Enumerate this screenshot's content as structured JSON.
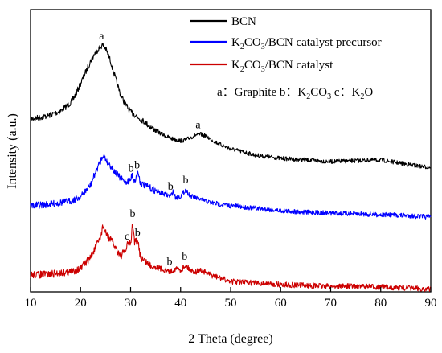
{
  "chart_data": {
    "type": "line",
    "title": "",
    "xlabel": "2 Theta (degree)",
    "ylabel": "Intensity (a.u.)",
    "xlim": [
      10,
      90
    ],
    "xticks": [
      10,
      20,
      30,
      40,
      50,
      60,
      70,
      80,
      90
    ],
    "yticks_shown": false,
    "grid": false,
    "legend": {
      "placement": "top-right"
    },
    "series": [
      {
        "name": "BCN",
        "color": "#000000",
        "points": [
          [
            10,
            148
          ],
          [
            12,
            146
          ],
          [
            14,
            143
          ],
          [
            16,
            138
          ],
          [
            18,
            128
          ],
          [
            19,
            118
          ],
          [
            20,
            104
          ],
          [
            21,
            90
          ],
          [
            22,
            76
          ],
          [
            23,
            65
          ],
          [
            24,
            58
          ],
          [
            24.5,
            56
          ],
          [
            25,
            60
          ],
          [
            26,
            76
          ],
          [
            27,
            98
          ],
          [
            28,
            118
          ],
          [
            29,
            130
          ],
          [
            30,
            139
          ],
          [
            32,
            148
          ],
          [
            34,
            158
          ],
          [
            36,
            166
          ],
          [
            38,
            172
          ],
          [
            40,
            175
          ],
          [
            41,
            174
          ],
          [
            42,
            171
          ],
          [
            43,
            168
          ],
          [
            44,
            167
          ],
          [
            45,
            169
          ],
          [
            46,
            173
          ],
          [
            48,
            180
          ],
          [
            50,
            185
          ],
          [
            55,
            193
          ],
          [
            60,
            197
          ],
          [
            65,
            199
          ],
          [
            70,
            201
          ],
          [
            75,
            200
          ],
          [
            78,
            199
          ],
          [
            80,
            199
          ],
          [
            83,
            202
          ],
          [
            86,
            205
          ],
          [
            88,
            207
          ],
          [
            90,
            208
          ]
        ]
      },
      {
        "name": "K2CO3/BCN catalyst precursor",
        "color": "#0000ff",
        "points": [
          [
            10,
            256
          ],
          [
            14,
            254
          ],
          [
            18,
            250
          ],
          [
            20,
            245
          ],
          [
            22,
            230
          ],
          [
            23,
            214
          ],
          [
            24,
            200
          ],
          [
            24.5,
            192
          ],
          [
            25,
            198
          ],
          [
            26,
            206
          ],
          [
            27,
            215
          ],
          [
            28,
            222
          ],
          [
            29,
            226
          ],
          [
            30,
            224
          ],
          [
            30.3,
            216
          ],
          [
            30.8,
            226
          ],
          [
            31.5,
            214
          ],
          [
            32,
            228
          ],
          [
            34,
            234
          ],
          [
            36,
            240
          ],
          [
            38,
            244
          ],
          [
            38.5,
            238
          ],
          [
            39,
            246
          ],
          [
            40,
            244
          ],
          [
            41,
            236
          ],
          [
            42,
            244
          ],
          [
            44,
            248
          ],
          [
            46,
            252
          ],
          [
            48,
            254
          ],
          [
            50,
            256
          ],
          [
            52,
            257
          ],
          [
            55,
            259
          ],
          [
            60,
            262
          ],
          [
            65,
            264
          ],
          [
            70,
            265
          ],
          [
            75,
            266
          ],
          [
            80,
            267
          ],
          [
            85,
            268
          ],
          [
            90,
            270
          ]
        ]
      },
      {
        "name": "K2CO3/BCN catalyst",
        "color": "#cc0000",
        "points": [
          [
            10,
            342
          ],
          [
            14,
            341
          ],
          [
            18,
            338
          ],
          [
            20,
            334
          ],
          [
            22,
            320
          ],
          [
            23,
            308
          ],
          [
            24,
            295
          ],
          [
            24.5,
            280
          ],
          [
            25,
            290
          ],
          [
            26,
            298
          ],
          [
            27,
            308
          ],
          [
            28,
            318
          ],
          [
            29,
            312
          ],
          [
            29.5,
            302
          ],
          [
            30,
            304
          ],
          [
            30.4,
            278
          ],
          [
            30.8,
            300
          ],
          [
            31.5,
            302
          ],
          [
            32,
            320
          ],
          [
            34,
            330
          ],
          [
            36,
            334
          ],
          [
            38,
            338
          ],
          [
            39,
            334
          ],
          [
            40,
            336
          ],
          [
            41,
            330
          ],
          [
            42,
            336
          ],
          [
            43,
            338
          ],
          [
            44,
            336
          ],
          [
            46,
            342
          ],
          [
            48,
            346
          ],
          [
            50,
            350
          ],
          [
            55,
            352
          ],
          [
            60,
            354
          ],
          [
            65,
            355
          ],
          [
            70,
            356
          ],
          [
            75,
            356
          ],
          [
            80,
            357
          ],
          [
            85,
            358
          ],
          [
            90,
            360
          ]
        ]
      }
    ],
    "peak_annotations": [
      {
        "label": "a",
        "x": 24.2,
        "series": 0
      },
      {
        "label": "a",
        "x": 43.5,
        "series": 0
      },
      {
        "label": "b",
        "x": 30.1,
        "series": 1
      },
      {
        "label": "b",
        "x": 31.3,
        "series": 1
      },
      {
        "label": "b",
        "x": 38.0,
        "series": 1
      },
      {
        "label": "b",
        "x": 41.0,
        "series": 1
      },
      {
        "label": "b",
        "x": 30.4,
        "series": 2
      },
      {
        "label": "c",
        "x": 29.3,
        "series": 2
      },
      {
        "label": "b",
        "x": 31.4,
        "series": 2
      },
      {
        "label": "b",
        "x": 37.8,
        "series": 2
      },
      {
        "label": "b",
        "x": 40.8,
        "series": 2
      }
    ],
    "legend_items": [
      {
        "base": "BCN"
      },
      {
        "base": "K",
        "sub1": "2",
        "mid": "CO",
        "sub2": "3",
        "tail": "/BCN catalyst precursor"
      },
      {
        "base": "K",
        "sub1": "2",
        "mid": "CO",
        "sub2": "3",
        "tail": "/BCN catalyst"
      }
    ],
    "note": {
      "p1": "a：Graphite  b：K",
      "s1": "2",
      "p2": "CO",
      "s2": "3",
      "p3": " c：K",
      "s3": "2",
      "p4": "O"
    }
  }
}
